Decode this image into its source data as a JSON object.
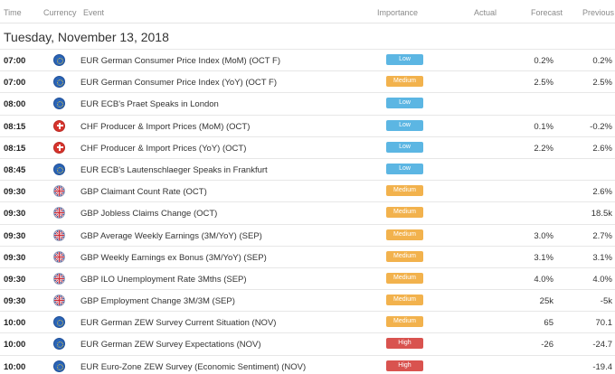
{
  "header": {
    "time": "Time",
    "currency": "Currency",
    "event": "Event",
    "importance": "Importance",
    "actual": "Actual",
    "forecast": "Forecast",
    "previous": "Previous"
  },
  "date_label": "Tuesday, November 13, 2018",
  "colors": {
    "low": "#5cb6e3",
    "medium": "#f2b24d",
    "high": "#d9534f"
  },
  "rows": [
    {
      "time": "07:00",
      "flag": "eu-flag-icon",
      "event": "EUR German Consumer Price Index (MoM) (OCT F)",
      "importance": "Low",
      "forecast": "0.2%",
      "previous": "0.2%"
    },
    {
      "time": "07:00",
      "flag": "eu-flag-icon",
      "event": "EUR German Consumer Price Index (YoY) (OCT F)",
      "importance": "Medium",
      "forecast": "2.5%",
      "previous": "2.5%"
    },
    {
      "time": "08:00",
      "flag": "eu-flag-icon",
      "event": "EUR ECB's Praet Speaks in London",
      "importance": "Low",
      "forecast": "",
      "previous": ""
    },
    {
      "time": "08:15",
      "flag": "ch-flag-icon",
      "event": "CHF Producer & Import Prices (MoM) (OCT)",
      "importance": "Low",
      "forecast": "0.1%",
      "previous": "-0.2%"
    },
    {
      "time": "08:15",
      "flag": "ch-flag-icon",
      "event": "CHF Producer & Import Prices (YoY) (OCT)",
      "importance": "Low",
      "forecast": "2.2%",
      "previous": "2.6%"
    },
    {
      "time": "08:45",
      "flag": "eu-flag-icon",
      "event": "EUR ECB's Lautenschlaeger Speaks in Frankfurt",
      "importance": "Low",
      "forecast": "",
      "previous": ""
    },
    {
      "time": "09:30",
      "flag": "gb-flag-icon",
      "event": "GBP Claimant Count Rate (OCT)",
      "importance": "Medium",
      "forecast": "",
      "previous": "2.6%"
    },
    {
      "time": "09:30",
      "flag": "gb-flag-icon",
      "event": "GBP Jobless Claims Change (OCT)",
      "importance": "Medium",
      "forecast": "",
      "previous": "18.5k"
    },
    {
      "time": "09:30",
      "flag": "gb-flag-icon",
      "event": "GBP Average Weekly Earnings (3M/YoY) (SEP)",
      "importance": "Medium",
      "forecast": "3.0%",
      "previous": "2.7%"
    },
    {
      "time": "09:30",
      "flag": "gb-flag-icon",
      "event": "GBP Weekly Earnings ex Bonus (3M/YoY) (SEP)",
      "importance": "Medium",
      "forecast": "3.1%",
      "previous": "3.1%"
    },
    {
      "time": "09:30",
      "flag": "gb-flag-icon",
      "event": "GBP ILO Unemployment Rate 3Mths (SEP)",
      "importance": "Medium",
      "forecast": "4.0%",
      "previous": "4.0%"
    },
    {
      "time": "09:30",
      "flag": "gb-flag-icon",
      "event": "GBP Employment Change 3M/3M (SEP)",
      "importance": "Medium",
      "forecast": "25k",
      "previous": "-5k"
    },
    {
      "time": "10:00",
      "flag": "eu-flag-icon",
      "event": "EUR German ZEW Survey Current Situation (NOV)",
      "importance": "Medium",
      "forecast": "65",
      "previous": "70.1"
    },
    {
      "time": "10:00",
      "flag": "eu-flag-icon",
      "event": "EUR German ZEW Survey Expectations (NOV)",
      "importance": "High",
      "forecast": "-26",
      "previous": "-24.7"
    },
    {
      "time": "10:00",
      "flag": "eu-flag-icon",
      "event": "EUR Euro-Zone ZEW Survey (Economic Sentiment) (NOV)",
      "importance": "High",
      "forecast": "",
      "previous": "-19.4"
    }
  ]
}
